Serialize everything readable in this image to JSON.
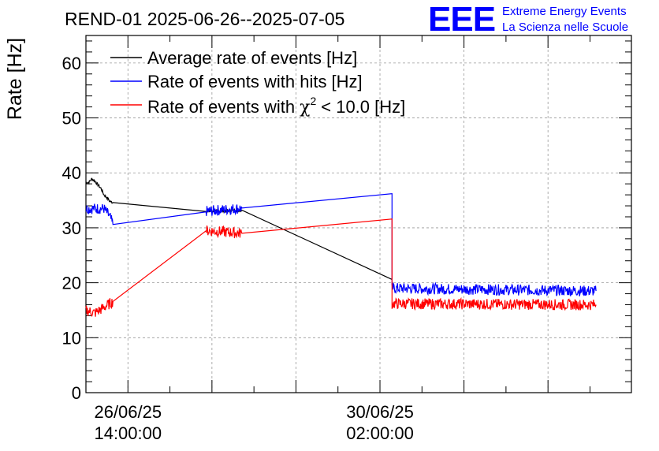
{
  "header": {
    "title": "REND-01 2025-06-26--2025-07-05",
    "logo_letters": "EEE",
    "logo_line1": "Extreme Energy Events",
    "logo_line2": "La Scienza nelle Scuole"
  },
  "chart_data": {
    "type": "line",
    "title": "REND-01 2025-06-26--2025-07-05",
    "ylabel": "Rate [Hz]",
    "xlabel": "",
    "x_unit": "hours since 26/06/25 00:00:00",
    "xlim": [
      0,
      181.8
    ],
    "ylim": [
      0,
      65
    ],
    "yticks": [
      0,
      10,
      20,
      30,
      40,
      50,
      60
    ],
    "xtick_labels": [
      {
        "x": 14,
        "line1": "26/06/25",
        "line2": "14:00:00"
      },
      {
        "x": 98,
        "line1": "30/06/25",
        "line2": "02:00:00"
      }
    ],
    "xgrid": [
      14,
      42,
      70,
      98,
      126,
      154
    ],
    "xminor": [
      0,
      14,
      28,
      42,
      56,
      70,
      84,
      98,
      112,
      126,
      140,
      154,
      168
    ],
    "grid": true,
    "legend_position": "top-left",
    "series": [
      {
        "name": "Average rate of events [Hz]",
        "legend_text": "Average rate of events [Hz]",
        "color": "#000000",
        "noise": 0.25,
        "points": [
          [
            0,
            38.2
          ],
          [
            1,
            38.3
          ],
          [
            2,
            38.9
          ],
          [
            3,
            38.5
          ],
          [
            4,
            37.8
          ],
          [
            5,
            37.2
          ],
          [
            6,
            36.0
          ],
          [
            7,
            35.5
          ],
          [
            8,
            34.8
          ],
          [
            9,
            34.6
          ],
          [
            40,
            33.0
          ],
          [
            52,
            33.2
          ],
          [
            102,
            20.6
          ]
        ]
      },
      {
        "name": "Rate of events with hits [Hz]",
        "legend_text": "Rate of events with hits [Hz]",
        "color": "#0000ff",
        "noise": 1.0,
        "points": [
          [
            0,
            33.5
          ],
          [
            6,
            33.5
          ],
          [
            8,
            32.0
          ],
          [
            9,
            30.6
          ],
          [
            40,
            33.0
          ],
          [
            52,
            33.6
          ],
          [
            102,
            36.2
          ],
          [
            102,
            19.0
          ],
          [
            170,
            18.5
          ]
        ]
      },
      {
        "name": "Rate of events with χ² < 10.0 [Hz]",
        "legend_text": "Rate of events with",
        "legend_suffix": "< 10.0 [Hz]",
        "color": "#ff0000",
        "noise": 1.0,
        "points": [
          [
            0,
            15.0
          ],
          [
            3,
            14.5
          ],
          [
            6,
            15.5
          ],
          [
            9,
            16.6
          ],
          [
            40,
            29.5
          ],
          [
            52,
            29.0
          ],
          [
            102,
            31.6
          ],
          [
            102,
            16.2
          ],
          [
            170,
            16.0
          ]
        ]
      }
    ]
  }
}
